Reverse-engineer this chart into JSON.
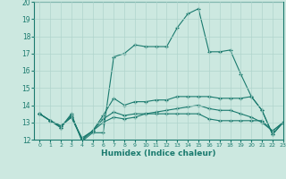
{
  "xlabel": "Humidex (Indice chaleur)",
  "xlim": [
    -0.5,
    23
  ],
  "ylim": [
    12,
    20
  ],
  "yticks": [
    12,
    13,
    14,
    15,
    16,
    17,
    18,
    19,
    20
  ],
  "xticks": [
    0,
    1,
    2,
    3,
    4,
    5,
    6,
    7,
    8,
    9,
    10,
    11,
    12,
    13,
    14,
    15,
    16,
    17,
    18,
    19,
    20,
    21,
    22,
    23
  ],
  "bg_color": "#cce8e0",
  "grid_color": "#b0d4cc",
  "line_color": "#1a7a6e",
  "lines": [
    {
      "x": [
        0,
        1,
        2,
        3,
        4,
        5,
        6,
        7,
        8,
        9,
        10,
        11,
        12,
        13,
        14,
        15,
        16,
        17,
        18,
        19,
        20,
        21,
        22,
        23
      ],
      "y": [
        13.5,
        13.1,
        12.7,
        13.5,
        11.9,
        12.4,
        12.4,
        16.8,
        17.0,
        17.5,
        17.4,
        17.4,
        17.4,
        18.5,
        19.3,
        19.6,
        17.1,
        17.1,
        17.2,
        15.8,
        14.5,
        13.7,
        12.3,
        13.0
      ]
    },
    {
      "x": [
        0,
        1,
        2,
        3,
        4,
        5,
        6,
        7,
        8,
        9,
        10,
        11,
        12,
        13,
        14,
        15,
        16,
        17,
        18,
        19,
        20,
        21,
        22,
        23
      ],
      "y": [
        13.5,
        13.1,
        12.7,
        13.4,
        12.0,
        12.5,
        13.4,
        14.4,
        14.0,
        14.2,
        14.2,
        14.3,
        14.3,
        14.5,
        14.5,
        14.5,
        14.5,
        14.4,
        14.4,
        14.4,
        14.5,
        13.7,
        12.3,
        13.0
      ]
    },
    {
      "x": [
        0,
        1,
        2,
        3,
        4,
        5,
        6,
        7,
        8,
        9,
        10,
        11,
        12,
        13,
        14,
        15,
        16,
        17,
        18,
        19,
        20,
        21,
        22,
        23
      ],
      "y": [
        13.5,
        13.1,
        12.8,
        13.3,
        12.1,
        12.5,
        13.2,
        13.6,
        13.4,
        13.5,
        13.5,
        13.5,
        13.5,
        13.5,
        13.5,
        13.5,
        13.2,
        13.1,
        13.1,
        13.1,
        13.1,
        13.1,
        12.5,
        13.0
      ]
    },
    {
      "x": [
        0,
        1,
        2,
        3,
        4,
        5,
        6,
        7,
        8,
        9,
        10,
        11,
        12,
        13,
        14,
        15,
        16,
        17,
        18,
        19,
        20,
        21,
        22,
        23
      ],
      "y": [
        13.5,
        13.1,
        12.8,
        13.3,
        12.0,
        12.5,
        13.0,
        13.3,
        13.2,
        13.3,
        13.5,
        13.6,
        13.7,
        13.8,
        13.9,
        14.0,
        13.8,
        13.7,
        13.7,
        13.5,
        13.3,
        13.0,
        12.5,
        13.0
      ]
    }
  ]
}
